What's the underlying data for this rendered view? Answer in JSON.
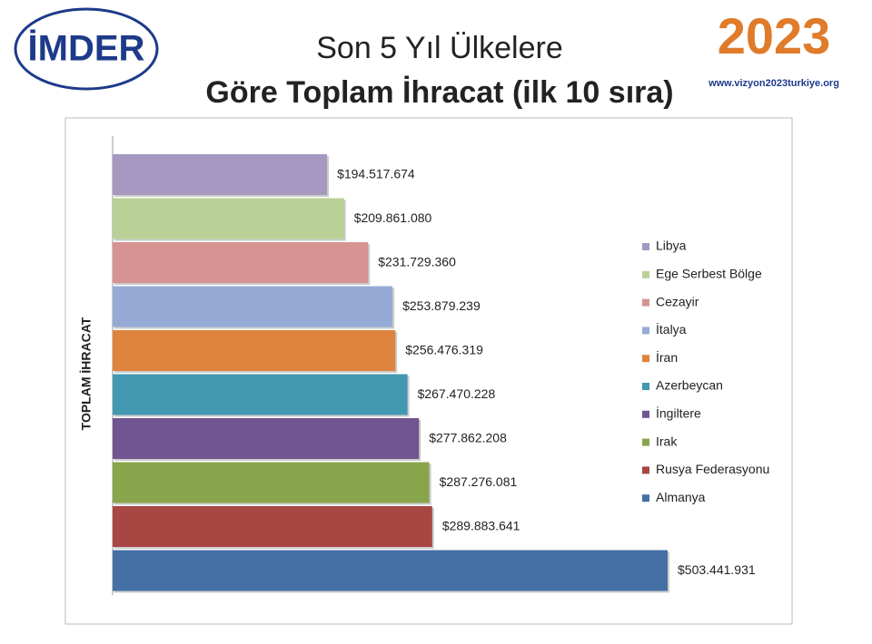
{
  "header": {
    "logo_left": "İMDER",
    "title_line1": "Son 5 Yıl Ülkelere",
    "title_line2": "Göre Toplam İhracat (ilk 10 sıra)",
    "logo_right": "2023",
    "logo_right_url": "www.vizyon2023turkiye.org"
  },
  "chart_data": {
    "type": "hbar",
    "y_label": "TOPLAM İHRACAT",
    "categories": [
      "Libya",
      "Ege Serbest Bölge",
      "Cezayir",
      "İtalya",
      "İran",
      "Azerbeycan",
      "İngiltere",
      "Irak",
      "Rusya Federasyonu",
      "Almanya"
    ],
    "values": [
      194517674,
      209861080,
      231729360,
      253879239,
      256476319,
      267470228,
      277862208,
      287276081,
      289883641,
      503441931
    ],
    "value_labels": [
      "$194.517.674",
      "$209.861.080",
      "$231.729.360",
      "$253.879.239",
      "$256.476.319",
      "$267.470.228",
      "$277.862.208",
      "$287.276.081",
      "$289.883.641",
      "$503.441.931"
    ],
    "colors": [
      "#a599c1",
      "#b9d196",
      "#d69391",
      "#95abd6",
      "#de833e",
      "#4298b0",
      "#715592",
      "#88a54c",
      "#a84644",
      "#4570a6"
    ],
    "legend": "right"
  }
}
